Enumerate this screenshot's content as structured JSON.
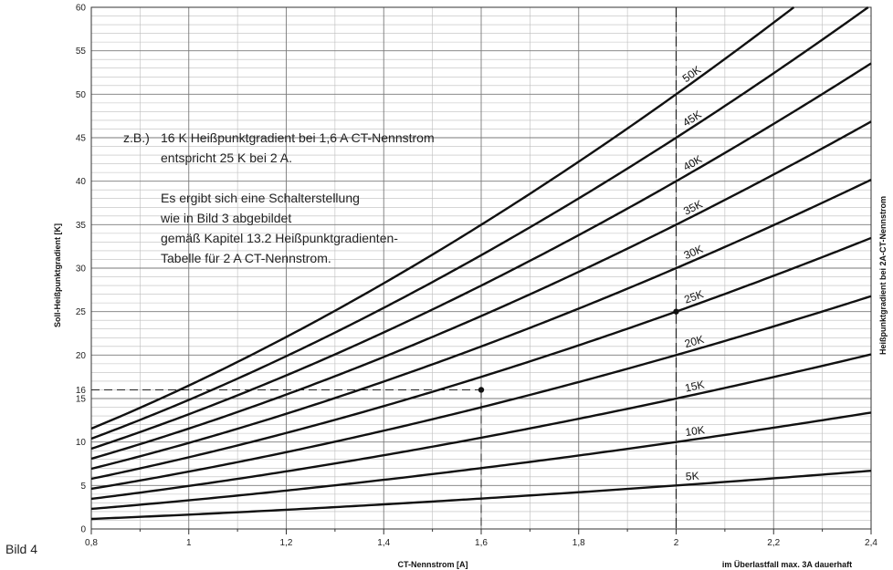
{
  "figure_label": "Bild 4",
  "chart_data": {
    "type": "line",
    "xlabel": "CT-Nennstrom [A]",
    "ylabel": "Soll-Heißpunktgradient [K]",
    "y2label": "Heißpunktgradient bei 2A-CT-Nennstrom",
    "xnote": "im Überlastfall max. 3A dauerhaft",
    "xlim": [
      0.8,
      2.4
    ],
    "ylim": [
      0,
      60
    ],
    "x_ticks": [
      "0,8",
      "1",
      "1,2",
      "1,4",
      "1,6",
      "1,8",
      "2",
      "2,2",
      "2,4"
    ],
    "x_tick_values": [
      0.8,
      1.0,
      1.2,
      1.4,
      1.6,
      1.8,
      2.0,
      2.2,
      2.4
    ],
    "y_ticks": [
      "0",
      "5",
      "10",
      "15",
      "16",
      "20",
      "25",
      "30",
      "35",
      "40",
      "45",
      "50",
      "55",
      "60"
    ],
    "y_tick_values": [
      0,
      5,
      10,
      15,
      16,
      20,
      25,
      30,
      35,
      40,
      45,
      50,
      55,
      60
    ],
    "grid": true,
    "series": [
      {
        "name": "5K",
        "value_at_2A": 5
      },
      {
        "name": "10K",
        "value_at_2A": 10
      },
      {
        "name": "15K",
        "value_at_2A": 15
      },
      {
        "name": "20K",
        "value_at_2A": 20
      },
      {
        "name": "25K",
        "value_at_2A": 25
      },
      {
        "name": "30K",
        "value_at_2A": 30
      },
      {
        "name": "35K",
        "value_at_2A": 35
      },
      {
        "name": "40K",
        "value_at_2A": 40
      },
      {
        "name": "45K",
        "value_at_2A": 45
      },
      {
        "name": "50K",
        "value_at_2A": 50
      }
    ],
    "example_points": [
      {
        "x": 1.6,
        "y": 16
      },
      {
        "x": 2.0,
        "y": 25
      }
    ],
    "annotations": [
      "z.B.)",
      "16 K Heißpunktgradient bei 1,6 A CT-Nennstrom",
      "entspricht 25 K bei 2 A.",
      "Es ergibt sich eine Schalterstellung",
      "wie in Bild 3 abgebildet",
      "gemäß Kapitel 13.2 Heißpunktgradienten-",
      "Tabelle für 2 A CT-Nennstrom."
    ]
  }
}
